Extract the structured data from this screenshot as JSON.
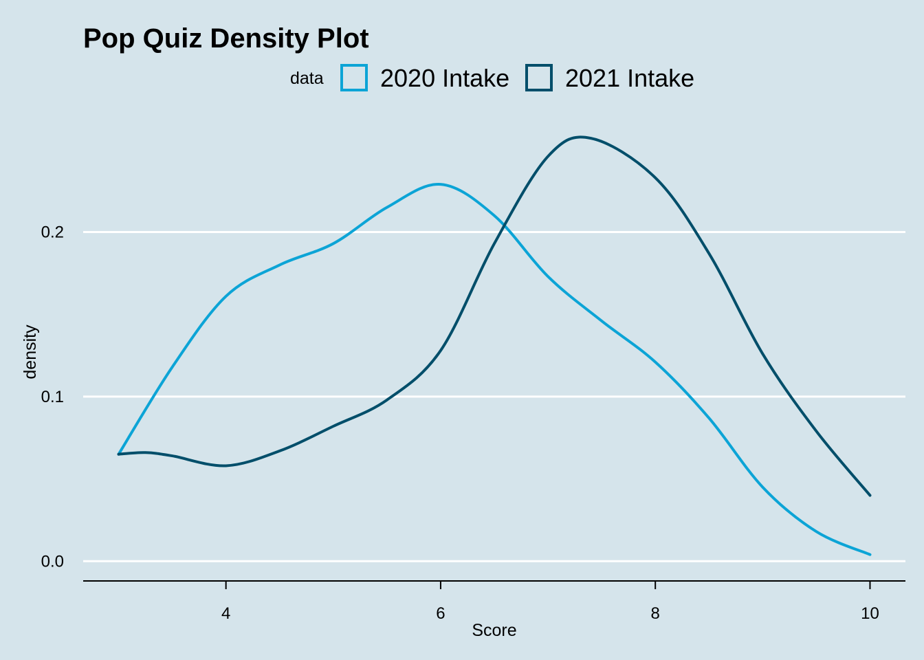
{
  "chart_data": {
    "type": "line",
    "title": "Pop Quiz Density Plot",
    "xlabel": "Score",
    "ylabel": "density",
    "legend_title": "data",
    "legend_position": "top",
    "grid": "horizontal major only",
    "xlim": [
      2.67,
      10.33
    ],
    "ylim": [
      -0.012,
      0.27
    ],
    "x_ticks": [
      4,
      6,
      8,
      10
    ],
    "x_tick_labels": [
      "4",
      "6",
      "8",
      "10"
    ],
    "y_ticks": [
      0.0,
      0.1,
      0.2
    ],
    "y_tick_labels": [
      "0.0",
      "0.1",
      "0.2"
    ],
    "series": [
      {
        "name": "2020 Intake",
        "color": "#0ca4d6",
        "x": [
          3.0,
          3.5,
          4.0,
          4.5,
          5.0,
          5.5,
          6.0,
          6.5,
          7.0,
          7.5,
          8.0,
          8.5,
          9.0,
          9.5,
          10.0
        ],
        "y": [
          0.065,
          0.118,
          0.161,
          0.18,
          0.193,
          0.215,
          0.229,
          0.21,
          0.173,
          0.146,
          0.121,
          0.087,
          0.045,
          0.018,
          0.004
        ]
      },
      {
        "name": "2021 Intake",
        "color": "#014e6a",
        "x": [
          3.0,
          3.25,
          3.5,
          4.0,
          4.5,
          5.0,
          5.5,
          6.0,
          6.5,
          7.0,
          7.4,
          8.0,
          8.5,
          9.0,
          9.5,
          10.0
        ],
        "y": [
          0.065,
          0.066,
          0.064,
          0.058,
          0.067,
          0.082,
          0.098,
          0.128,
          0.193,
          0.246,
          0.257,
          0.233,
          0.187,
          0.126,
          0.079,
          0.04
        ]
      }
    ]
  }
}
